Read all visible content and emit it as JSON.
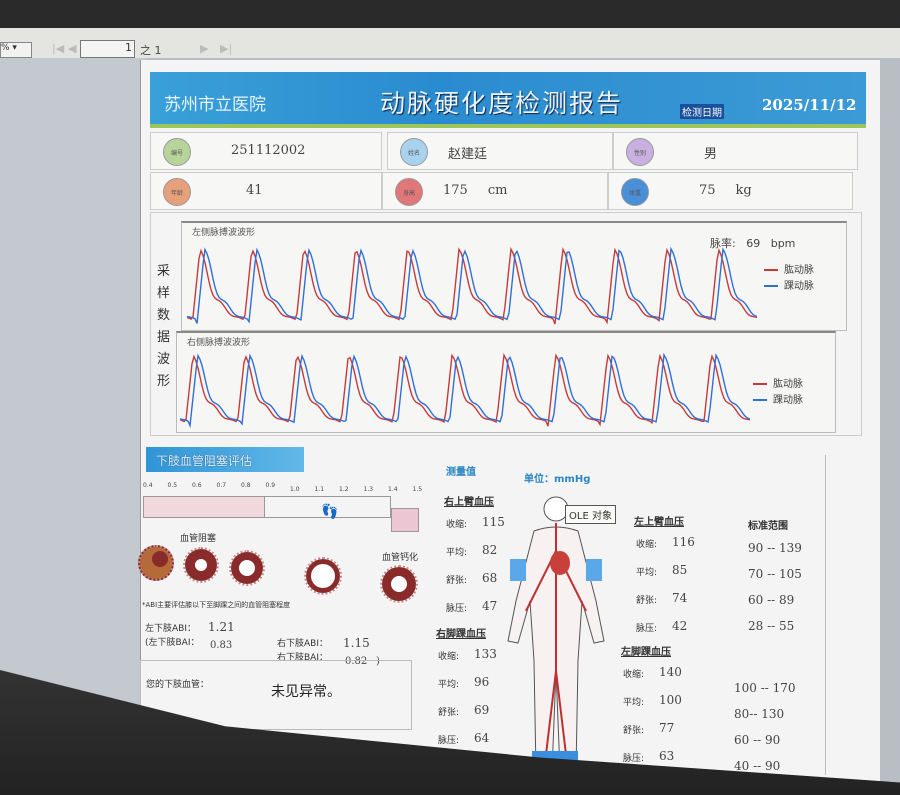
{
  "viewer": {
    "zoom_value": "%",
    "page_current": "1",
    "page_of": "之 1"
  },
  "header": {
    "hospital": "苏州市立医院",
    "title": "动脉硬化度检测报告",
    "date_label": "检测日期",
    "date": "2025/11/12"
  },
  "patient": [
    {
      "label": "编号",
      "value": "251112002",
      "unit": "",
      "color": "#b9d49a"
    },
    {
      "label": "姓名",
      "value": "赵建廷",
      "unit": "",
      "color": "#a9d2ef"
    },
    {
      "label": "性别",
      "value": "男",
      "unit": "",
      "color": "#c9b0e0"
    },
    {
      "label": "年龄",
      "value": "41",
      "unit": "",
      "color": "#e6a07a"
    },
    {
      "label": "身高",
      "value": "175",
      "unit": "cm",
      "color": "#e0787a"
    },
    {
      "label": "体重",
      "value": "75",
      "unit": "kg",
      "color": "#4a90d8"
    }
  ],
  "waveforms": {
    "section_label": "采样数据波形",
    "pulse_rate_label": "脉率:",
    "pulse_rate": "69",
    "pulse_rate_unit": "bpm",
    "charts": [
      {
        "title": "左侧脉搏波波形"
      },
      {
        "title": "右侧脉搏波波形"
      }
    ],
    "legend": [
      {
        "name": "肱动脉",
        "color": "#c83a3a"
      },
      {
        "name": "踝动脉",
        "color": "#2f6fd8"
      }
    ]
  },
  "lower": {
    "title": "下肢血管阻塞评估",
    "scale_ticks": [
      "0.4",
      "0.5",
      "0.6",
      "0.7",
      "0.8",
      "0.9",
      "1.0",
      "1.1",
      "1.2",
      "1.3",
      "1.4",
      "1.5"
    ],
    "obstruction_label": "血管阻塞",
    "calcification_label": "血管钙化",
    "note": "*ABI主要评估膝以下至脚踝之间的血管阻塞程度",
    "left_abi_label": "左下肢ABI：",
    "left_abi": "1.21",
    "left_bai_label": "(左下肢BAI：",
    "left_bai": "0.83",
    "right_abi_label": "右下肢ABI：",
    "right_abi": "1.15",
    "right_bai_label": "右下肢BAI：",
    "right_bai": "0.82",
    "right_bai_close": ")",
    "result_label": "您的下肢血管：",
    "result": "未见异常。"
  },
  "measurements": {
    "title": "测量值",
    "unit_label": "单位：",
    "unit": "mmHg",
    "tooltip": "OLE 对象",
    "row_labels": [
      "收缩:",
      "平均:",
      "舒张:",
      "脉压:"
    ],
    "right_arm": {
      "title": "右上臂血压",
      "values": [
        "115",
        "82",
        "68",
        "47"
      ]
    },
    "left_arm": {
      "title": "左上臂血压",
      "values": [
        "116",
        "85",
        "74",
        "42"
      ]
    },
    "right_ankle": {
      "title": "右脚踝血压",
      "values": [
        "133",
        "96",
        "69",
        "64"
      ]
    },
    "left_ankle": {
      "title": "左脚踝血压",
      "values": [
        "140",
        "100",
        "77",
        "63"
      ]
    },
    "standard_title": "标准范围",
    "arm_ranges": [
      "90 -- 139",
      "70 -- 105",
      "60 -- 89",
      "28 -- 55"
    ],
    "ankle_ranges": [
      "100 -- 170",
      "80-- 130",
      "60 -- 90",
      "40 -- 90"
    ]
  }
}
